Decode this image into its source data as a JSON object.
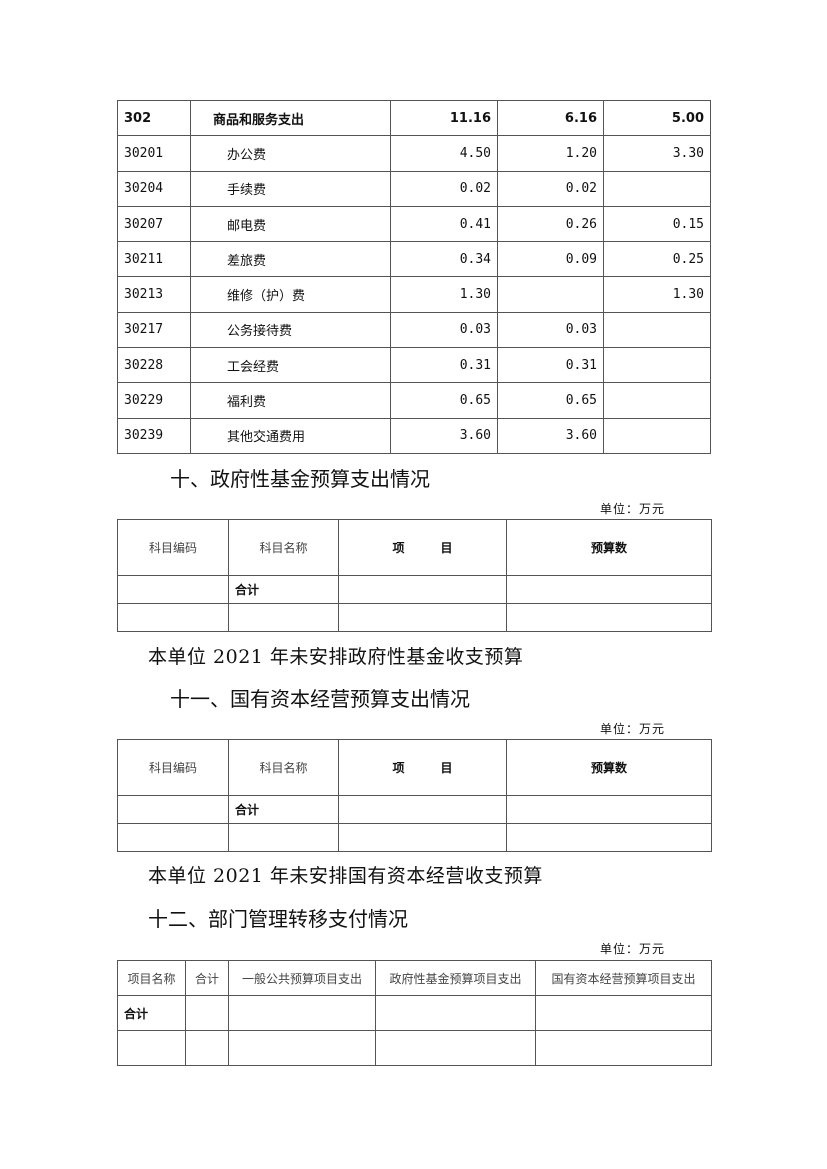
{
  "table_302": {
    "rows": [
      {
        "code": "302",
        "name": "商品和服务支出",
        "total": "11.16",
        "basic": "6.16",
        "project": "5.00",
        "bold": true
      },
      {
        "code": "30201",
        "name": "办公费",
        "total": "4.50",
        "basic": "1.20",
        "project": "3.30"
      },
      {
        "code": "30204",
        "name": "手续费",
        "total": "0.02",
        "basic": "0.02",
        "project": ""
      },
      {
        "code": "30207",
        "name": "邮电费",
        "total": "0.41",
        "basic": "0.26",
        "project": "0.15"
      },
      {
        "code": "30211",
        "name": "差旅费",
        "total": "0.34",
        "basic": "0.09",
        "project": "0.25"
      },
      {
        "code": "30213",
        "name": "维修（护）费",
        "total": "1.30",
        "basic": "",
        "project": "1.30"
      },
      {
        "code": "30217",
        "name": "公务接待费",
        "total": "0.03",
        "basic": "0.03",
        "project": ""
      },
      {
        "code": "30228",
        "name": "工会经费",
        "total": "0.31",
        "basic": "0.31",
        "project": ""
      },
      {
        "code": "30229",
        "name": "福利费",
        "total": "0.65",
        "basic": "0.65",
        "project": ""
      },
      {
        "code": "30239",
        "name": "其他交通费用",
        "total": "3.60",
        "basic": "3.60",
        "project": ""
      }
    ]
  },
  "section10": {
    "heading": "十、政府性基金预算支出情况",
    "unit": "单位：万元",
    "headers": [
      "科目编码",
      "科目名称",
      "项　　　目",
      "预算数"
    ],
    "total_label": "合计",
    "note": "本单位 2021 年未安排政府性基金收支预算"
  },
  "section11": {
    "heading": "十一、国有资本经营预算支出情况",
    "unit": "单位：万元",
    "headers": [
      "科目编码",
      "科目名称",
      "项　　　目",
      "预算数"
    ],
    "total_label": "合计",
    "note": "本单位 2021 年未安排国有资本经营收支预算"
  },
  "section12": {
    "heading": "十二、部门管理转移支付情况",
    "unit": "单位：万元",
    "headers": [
      "项目名称",
      "合计",
      "一般公共预算项目支出",
      "政府性基金预算项目支出",
      "国有资本经营预算项目支出"
    ],
    "total_label": "合计"
  }
}
